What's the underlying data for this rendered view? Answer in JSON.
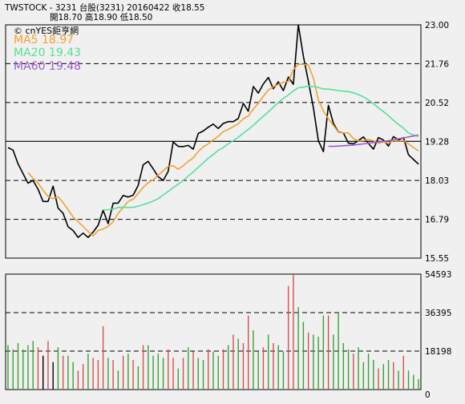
{
  "header": {
    "line1": "TWSTOCK  - 3231  台股(3231) 20160422   收18.55",
    "line2": "開18.70   高18.90   低18.50"
  },
  "watermark": "© cnYES鉅亨網",
  "legend": [
    {
      "text": "MA5 18.97",
      "color": "#f5a030"
    },
    {
      "text": "MA20 19.43",
      "color": "#55e09a"
    },
    {
      "text": "MA60 19.48",
      "color": "#9a5fd0"
    }
  ],
  "chart_data": [
    {
      "type": "line",
      "title": "",
      "ylim": [
        15.55,
        23.0
      ],
      "y_ticks": [
        "23.00",
        "21.76",
        "20.52",
        "19.28",
        "18.03",
        "16.79",
        "15.55"
      ],
      "grid": "dashed horizontal",
      "series": [
        {
          "name": "",
          "color": "#000000",
          "values": [
            19.08,
            19.0,
            18.56,
            18.25,
            17.94,
            18.03,
            17.75,
            17.36,
            17.36,
            17.85,
            17.15,
            16.98,
            16.55,
            16.43,
            16.21,
            16.35,
            16.21,
            16.38,
            16.6,
            17.08,
            16.65,
            17.3,
            17.31,
            17.55,
            17.5,
            17.56,
            17.87,
            18.53,
            18.64,
            18.4,
            18.15,
            18.03,
            18.32,
            19.26,
            19.12,
            19.11,
            19.15,
            19.03,
            19.53,
            19.61,
            19.73,
            19.83,
            19.69,
            19.85,
            19.91,
            19.91,
            20.01,
            20.49,
            20.24,
            21.03,
            20.82,
            21.11,
            21.32,
            20.96,
            21.18,
            20.9,
            21.33,
            21.1,
            23.0,
            22.0,
            21.2,
            20.35,
            19.3,
            18.95,
            20.43,
            19.85,
            19.58,
            19.55,
            19.22,
            19.2,
            19.3,
            19.42,
            19.21,
            19.03,
            19.4,
            19.32,
            19.13,
            19.43,
            19.32,
            19.4,
            18.85,
            18.7,
            18.55
          ]
        },
        {
          "name": "",
          "color": "#f5a030",
          "values": [
            null,
            null,
            null,
            null,
            18.28,
            18.1,
            17.95,
            17.72,
            17.52,
            17.45,
            17.51,
            17.32,
            17.1,
            16.86,
            16.71,
            16.56,
            16.4,
            16.26,
            16.43,
            16.48,
            16.56,
            16.71,
            16.98,
            17.17,
            17.36,
            17.43,
            17.61,
            17.81,
            17.96,
            18.05,
            18.2,
            18.34,
            18.48,
            18.5,
            18.39,
            18.5,
            18.64,
            18.75,
            18.96,
            19.1,
            19.2,
            19.33,
            19.44,
            19.59,
            19.66,
            19.75,
            19.84,
            20.0,
            20.09,
            20.31,
            20.49,
            20.72,
            20.92,
            21.02,
            21.1,
            21.17,
            21.19,
            21.56,
            21.74,
            21.74,
            21.72,
            21.3,
            20.6,
            20.25,
            20.0,
            19.79,
            19.57,
            19.55,
            19.55,
            19.37,
            19.29,
            19.3,
            19.34,
            19.3,
            19.22,
            19.26,
            19.22,
            19.3,
            19.29,
            19.3,
            19.2,
            19.08,
            18.97
          ]
        },
        {
          "name": "",
          "color": "#55e09a",
          "values": [
            null,
            null,
            null,
            null,
            null,
            null,
            null,
            null,
            null,
            null,
            null,
            null,
            null,
            null,
            null,
            null,
            null,
            null,
            null,
            17.08,
            17.1,
            17.11,
            17.17,
            17.17,
            17.17,
            17.17,
            17.21,
            17.26,
            17.31,
            17.37,
            17.45,
            17.57,
            17.68,
            17.8,
            17.91,
            18.03,
            18.17,
            18.3,
            18.45,
            18.59,
            18.74,
            18.86,
            18.99,
            19.08,
            19.2,
            19.3,
            19.41,
            19.54,
            19.66,
            19.79,
            19.94,
            20.08,
            20.22,
            20.37,
            20.52,
            20.65,
            20.76,
            20.89,
            20.99,
            21.01,
            21.04,
            21.03,
            21.0,
            20.95,
            20.95,
            20.92,
            20.9,
            20.88,
            20.87,
            20.83,
            20.77,
            20.7,
            20.6,
            20.48,
            20.35,
            20.23,
            20.1,
            19.95,
            19.82,
            19.7,
            19.55,
            19.48,
            19.43
          ]
        },
        {
          "name": "",
          "color": "#9a5fd0",
          "values": [
            null,
            null,
            null,
            null,
            null,
            null,
            null,
            null,
            null,
            null,
            null,
            null,
            null,
            null,
            null,
            null,
            null,
            null,
            null,
            null,
            null,
            null,
            null,
            null,
            null,
            null,
            null,
            null,
            null,
            null,
            null,
            null,
            null,
            null,
            null,
            null,
            null,
            null,
            null,
            null,
            null,
            null,
            null,
            null,
            null,
            null,
            null,
            null,
            null,
            null,
            null,
            null,
            null,
            null,
            null,
            null,
            null,
            null,
            null,
            null,
            null,
            null,
            null,
            null,
            19.12,
            19.12,
            19.13,
            19.14,
            19.15,
            19.16,
            19.18,
            19.2,
            19.22,
            19.24,
            19.26,
            19.28,
            19.3,
            19.33,
            19.36,
            19.39,
            19.42,
            19.45,
            19.48
          ]
        }
      ]
    },
    {
      "type": "bar",
      "title": "",
      "ylim": [
        0,
        54593
      ],
      "y_ticks": [
        "54593",
        "36395",
        "18198",
        "0"
      ],
      "values": [
        21000,
        19000,
        22000,
        19000,
        21000,
        23000,
        20000,
        16000,
        23000,
        13000,
        20000,
        16000,
        16000,
        13000,
        9000,
        12000,
        17000,
        15000,
        14000,
        30000,
        15000,
        14000,
        9000,
        16000,
        17000,
        14000,
        11000,
        21000,
        21000,
        16000,
        17000,
        15000,
        19000,
        15000,
        10000,
        15000,
        20000,
        18000,
        15000,
        14000,
        19000,
        18000,
        16000,
        19000,
        21000,
        26000,
        24000,
        22000,
        35000,
        28000,
        18000,
        20000,
        26000,
        22000,
        21000,
        18000,
        49000,
        55000,
        39000,
        32000,
        27000,
        26000,
        25000,
        35000,
        35000,
        26000,
        36000,
        22000,
        19000,
        17000,
        20000,
        13000,
        17000,
        14000,
        10000,
        12000,
        14000,
        13000,
        9000,
        16000,
        9000,
        7000,
        5000
      ],
      "colors": [
        "g",
        "g",
        "g",
        "g",
        "g",
        "g",
        "r",
        "k",
        "r",
        "k",
        "g",
        "r",
        "g",
        "g",
        "r",
        "r",
        "g",
        "r",
        "r",
        "r",
        "g",
        "r",
        "g",
        "r",
        "g",
        "r",
        "g",
        "r",
        "g",
        "g",
        "g",
        "g",
        "r",
        "r",
        "g",
        "r",
        "g",
        "r",
        "g",
        "g",
        "r",
        "g",
        "g",
        "r",
        "g",
        "r",
        "g",
        "r",
        "r",
        "g",
        "g",
        "r",
        "g",
        "r",
        "g",
        "g",
        "r",
        "r",
        "g",
        "g",
        "r",
        "g",
        "g",
        "g",
        "r",
        "g",
        "g",
        "g",
        "g",
        "r",
        "g",
        "g",
        "g",
        "g",
        "r",
        "g",
        "g",
        "r",
        "g",
        "r",
        "g",
        "g",
        "g"
      ]
    }
  ],
  "colors": {
    "up": "#d45050",
    "down": "#39a039",
    "flat": "#000000",
    "price": "#000000"
  }
}
